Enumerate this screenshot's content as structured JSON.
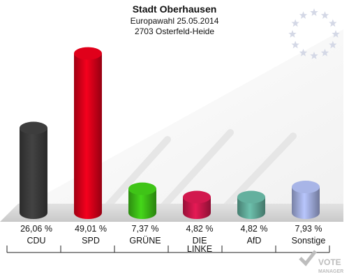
{
  "header": {
    "title": "Stadt Oberhausen",
    "subtitle1": "Europawahl 25.05.2014",
    "subtitle2": "2703 Osterfeld-Heide"
  },
  "chart_data": {
    "type": "bar",
    "title": "Stadt Oberhausen",
    "categories": [
      "CDU",
      "SPD",
      "GRÜNE",
      "DIE LINKE",
      "AfD",
      "Sonstige"
    ],
    "category_lines": [
      [
        "CDU"
      ],
      [
        "SPD"
      ],
      [
        "GRÜNE"
      ],
      [
        "DIE",
        "LINKE"
      ],
      [
        "AfD"
      ],
      [
        "Sonstige"
      ]
    ],
    "values": [
      26.06,
      49.01,
      7.37,
      4.82,
      4.82,
      7.93
    ],
    "value_labels": [
      "26,06 %",
      "49,01 %",
      "7,37 %",
      "4,82 %",
      "4,82 %",
      "7,93 %"
    ],
    "colors": [
      "#3a3a3a",
      "#d50019",
      "#3cbb16",
      "#c8174a",
      "#5fa896",
      "#a0acdc"
    ],
    "xlabel": "",
    "ylabel": "",
    "ylim": [
      0,
      50
    ],
    "grid": false,
    "legend": "none"
  },
  "branding": {
    "logo_text": "VOTE MANAGER",
    "eu_flag": "eu-stars-icon"
  }
}
